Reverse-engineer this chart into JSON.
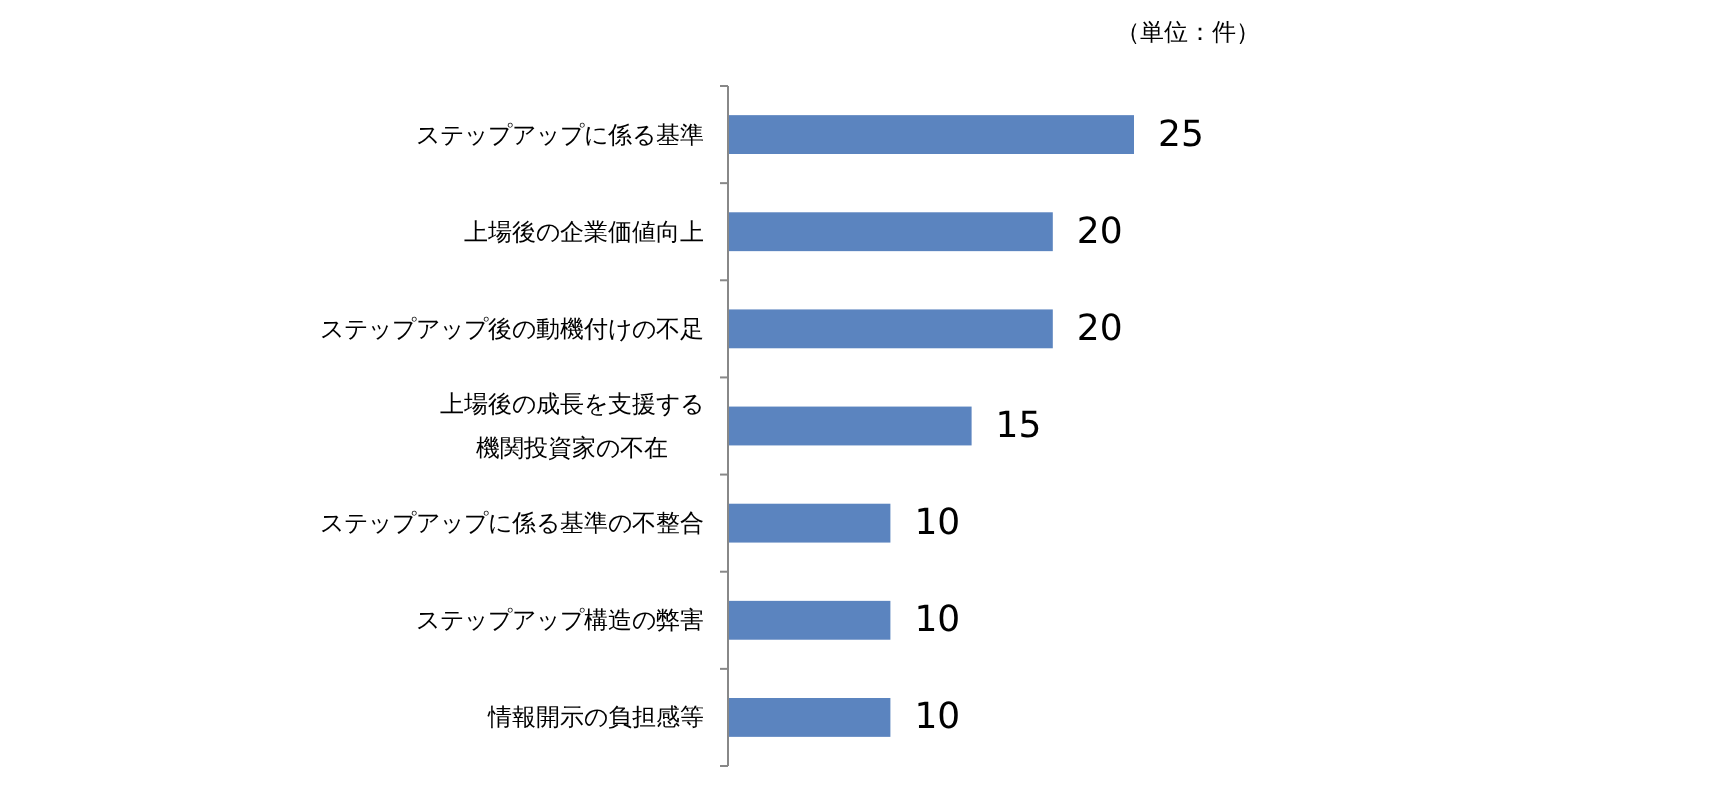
{
  "chart_data": {
    "type": "bar",
    "orientation": "horizontal",
    "categories": [
      "ステップアップに係る基準",
      "上場後の企業価値向上",
      "ステップアップ後の動機付けの不足",
      "上場後の成長を支援する機関投資家の不在",
      "ステップアップに係る基準の不整合",
      "ステップアップ構造の弊害",
      "情報開示の負担感等"
    ],
    "values": [
      25,
      20,
      20,
      15,
      10,
      10,
      10
    ],
    "color": "#5b84bf",
    "data_labels": true,
    "annotations": [
      "（単位：件）"
    ]
  }
}
